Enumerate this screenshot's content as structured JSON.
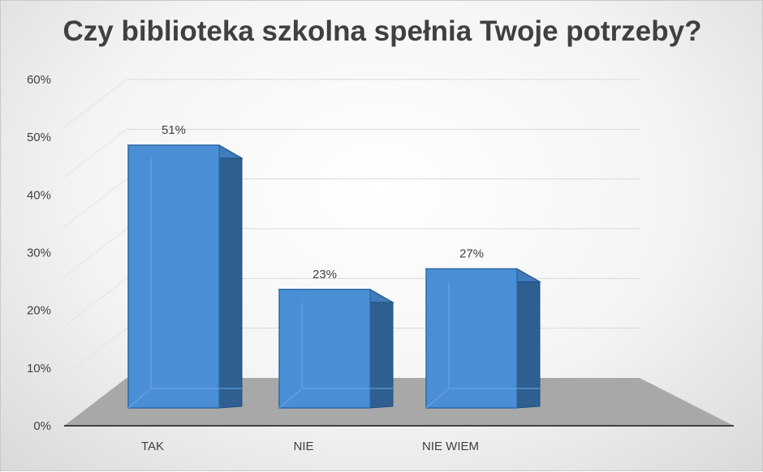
{
  "chart_data": {
    "type": "bar",
    "style": "3d-column",
    "title": "Czy biblioteka szkolna spełnia Twoje potrzeby?",
    "categories": [
      "TAK",
      "NIE",
      "NIE WIEM"
    ],
    "values": [
      51,
      23,
      27
    ],
    "data_labels": [
      "51%",
      "23%",
      "27%"
    ],
    "ylim": [
      0,
      60
    ],
    "yticks": [
      0,
      10,
      20,
      30,
      40,
      50,
      60
    ],
    "ytick_labels": [
      "0%",
      "10%",
      "20%",
      "30%",
      "40%",
      "50%",
      "60%"
    ],
    "xlabel": "",
    "ylabel": "",
    "grid": true,
    "legend": "none",
    "colors": {
      "bar_front": "#4a8fd6",
      "bar_side": "#2f5f91",
      "bar_top": "#3f7bbd",
      "floor": "#a8a8a8",
      "grid": "#d9d9d9",
      "axis": "#404040"
    }
  }
}
